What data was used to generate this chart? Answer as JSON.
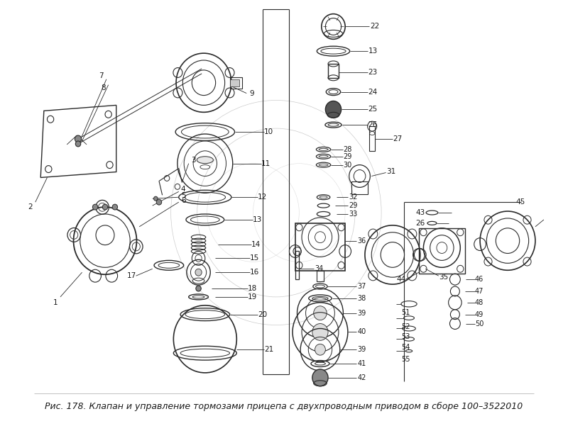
{
  "caption": "Рис. 178. Клапан и управление тормозами прицепа с двухпроводным приводом в сборе 100–3522010",
  "bg_color": "#ffffff",
  "fig_width": 8.0,
  "fig_height": 6.01,
  "dpi": 100,
  "line_color": "#2a2a2a",
  "text_color": "#1a1a1a",
  "light_line": "#888888",
  "caption_fontsize": 9.0
}
